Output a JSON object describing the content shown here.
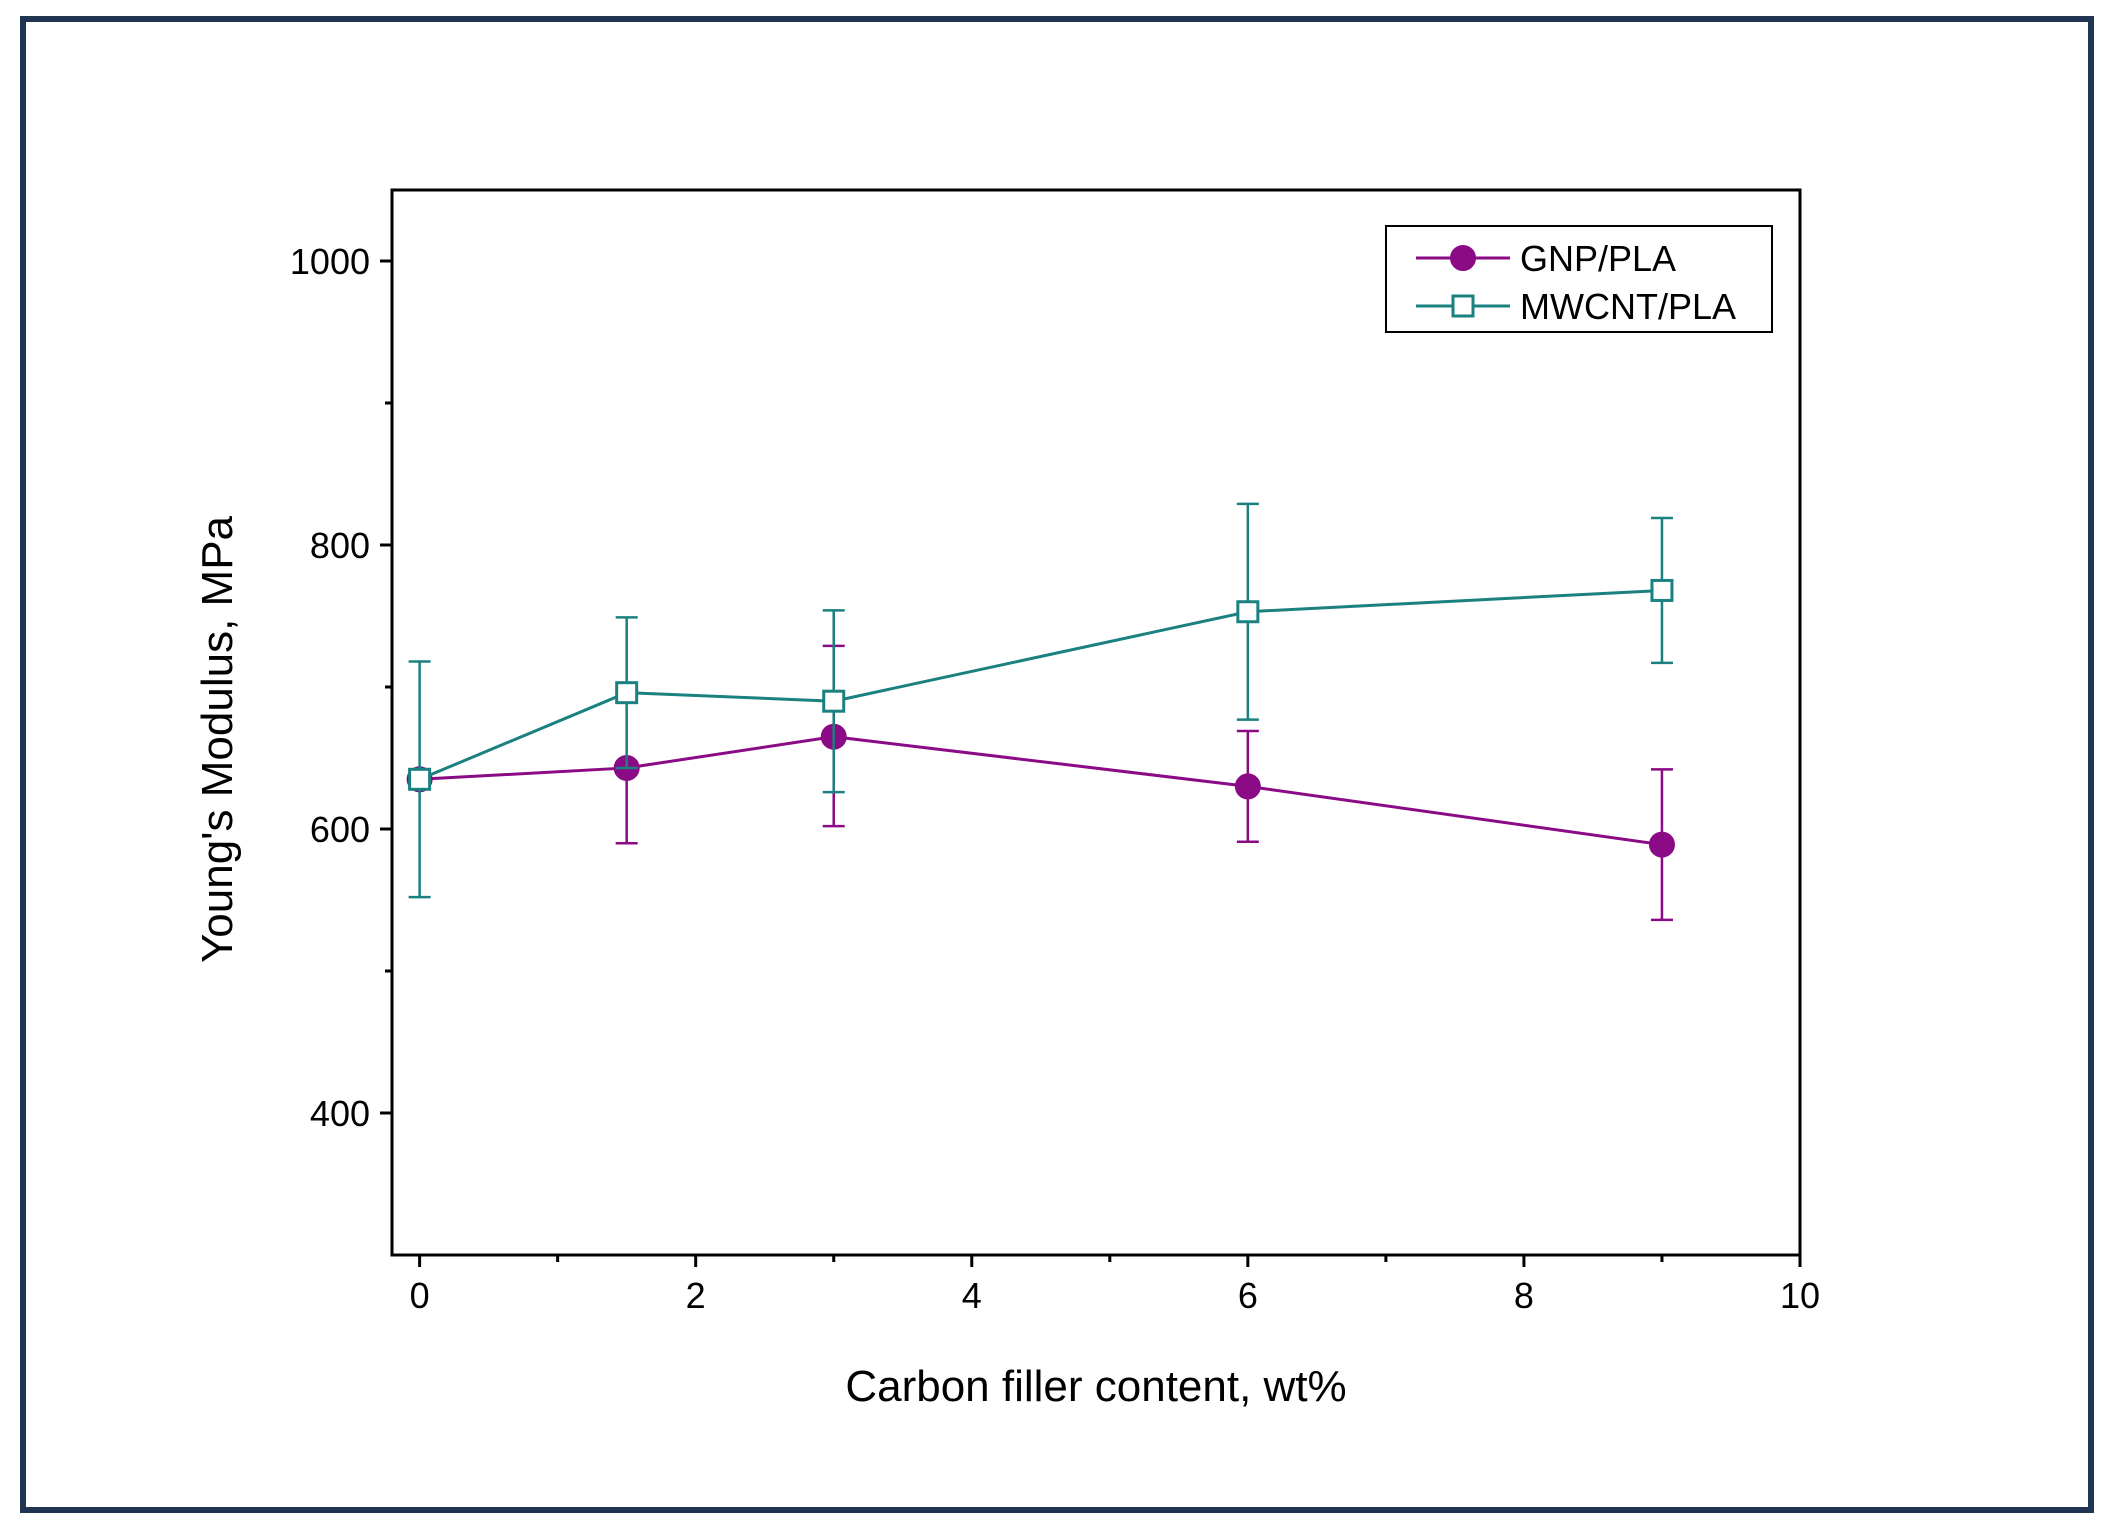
{
  "chart_data": {
    "type": "line",
    "title": "",
    "xlabel": "Carbon filler content, wt%",
    "ylabel": "Young's Modulus, MPa",
    "xlim": [
      -0.2,
      10
    ],
    "ylim": [
      300,
      1050
    ],
    "x_ticks": [
      0,
      2,
      4,
      6,
      8,
      10
    ],
    "x_minor_ticks": [
      1,
      3,
      5,
      7,
      9
    ],
    "y_ticks": [
      400,
      600,
      800,
      1000
    ],
    "y_minor_ticks": [
      500,
      700,
      900
    ],
    "grid": false,
    "legend_position": "top-right",
    "series": [
      {
        "name": "GNP/PLA",
        "color": "#8b0a85",
        "marker": "filled-circle",
        "x": [
          0,
          1.5,
          3,
          6,
          9
        ],
        "y": [
          635,
          643,
          665,
          630,
          589
        ],
        "err_low": [
          635,
          590,
          602,
          591,
          536
        ],
        "err_high": [
          635,
          643,
          729,
          669,
          642
        ]
      },
      {
        "name": "MWCNT/PLA",
        "color": "#1a8080",
        "marker": "open-square",
        "x": [
          0,
          1.5,
          3,
          6,
          9
        ],
        "y": [
          635,
          696,
          690,
          753,
          768
        ],
        "err_low": [
          552,
          643,
          626,
          677,
          717
        ],
        "err_high": [
          718,
          749,
          754,
          829,
          819
        ]
      }
    ]
  }
}
